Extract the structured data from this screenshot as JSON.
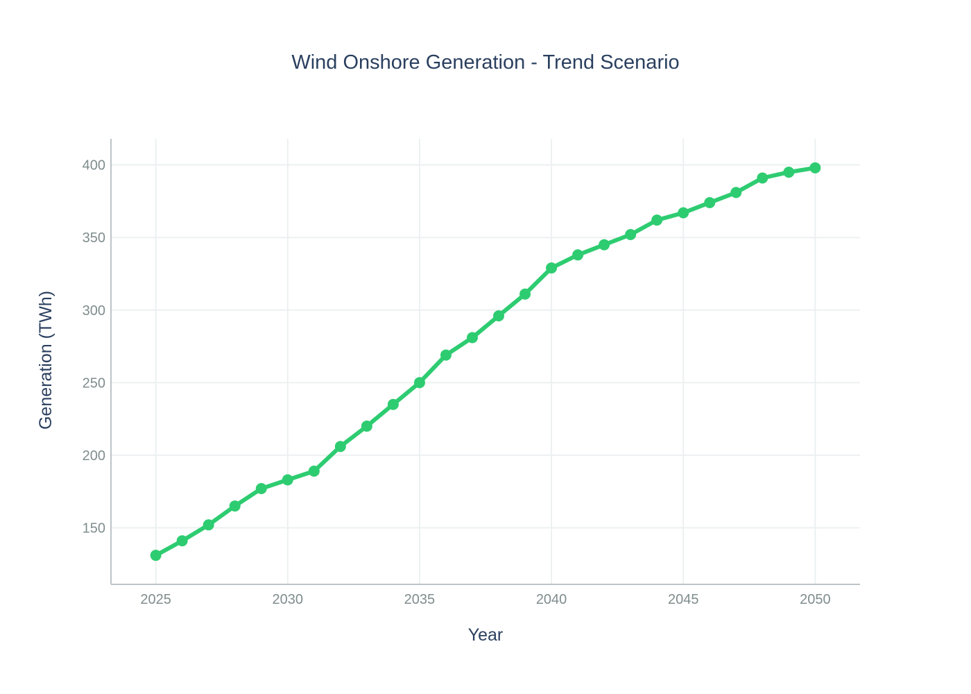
{
  "chart_data": {
    "type": "line",
    "title": "Wind Onshore Generation - Trend Scenario",
    "xlabel": "Year",
    "ylabel": "Generation (TWh)",
    "xlim": [
      2023.3,
      2051.7
    ],
    "ylim": [
      111,
      418
    ],
    "x_ticks": [
      2025,
      2030,
      2035,
      2040,
      2045,
      2050
    ],
    "y_ticks": [
      150,
      200,
      250,
      300,
      350,
      400
    ],
    "grid": true,
    "legend": "none",
    "series": [
      {
        "name": "Wind Onshore",
        "color": "#2ecc71",
        "x": [
          2025,
          2026,
          2027,
          2028,
          2029,
          2030,
          2031,
          2032,
          2033,
          2034,
          2035,
          2036,
          2037,
          2038,
          2039,
          2040,
          2041,
          2042,
          2043,
          2044,
          2045,
          2046,
          2047,
          2048,
          2049,
          2050
        ],
        "values": [
          131,
          141,
          152,
          165,
          177,
          183,
          189,
          206,
          220,
          235,
          250,
          269,
          281,
          296,
          311,
          329,
          338,
          345,
          352,
          362,
          367,
          374,
          381,
          391,
          395,
          398
        ]
      }
    ]
  }
}
